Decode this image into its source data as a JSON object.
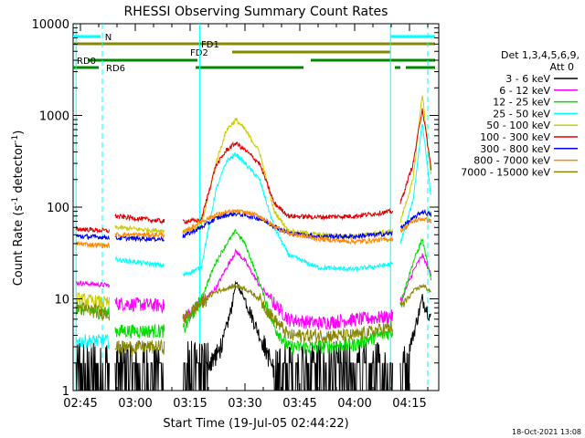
{
  "chart_data": {
    "type": "line",
    "title": "RHESSI Observing Summary Count Rates",
    "xlabel": "Start Time (19-Jul-05 02:44:22)",
    "ylabel_main": "Count Rate (s",
    "ylabel_sup1": "-1",
    "ylabel_mid": " detector",
    "ylabel_sup2": "-1",
    "ylabel_end": ")",
    "yscale": "log",
    "ylim": [
      1,
      10000
    ],
    "xlim_minutes": [
      163,
      263
    ],
    "xticks": [
      {
        "label": "02:45",
        "m": 165
      },
      {
        "label": "03:00",
        "m": 180
      },
      {
        "label": "03:15",
        "m": 195
      },
      {
        "label": "03:30",
        "m": 210
      },
      {
        "label": "03:45",
        "m": 225
      },
      {
        "label": "04:00",
        "m": 240
      },
      {
        "label": "04:15",
        "m": 255
      }
    ],
    "yticks": [
      {
        "label": "1",
        "v": 1
      },
      {
        "label": "10",
        "v": 10
      },
      {
        "label": "100",
        "v": 100
      },
      {
        "label": "1000",
        "v": 1000
      },
      {
        "label": "10000",
        "v": 10000
      }
    ],
    "legend": {
      "header1": "Det 1,3,4,5,6,9,",
      "header2": "Att 0",
      "entries": [
        {
          "label": "3 - 6 keV",
          "color": "#000000"
        },
        {
          "label": "6 - 12 keV",
          "color": "#ff00ff"
        },
        {
          "label": "12 - 25 keV",
          "color": "#00dd00"
        },
        {
          "label": "25 - 50 keV",
          "color": "#00ffff"
        },
        {
          "label": "50 - 100 keV",
          "color": "#cccc00"
        },
        {
          "label": "100 - 300 keV",
          "color": "#dd0000"
        },
        {
          "label": "300 - 800 keV",
          "color": "#0000ee"
        },
        {
          "label": "800 - 7000 keV",
          "color": "#ff8800"
        },
        {
          "label": "7000 - 15000 keV",
          "color": "#888800"
        }
      ]
    },
    "flags": {
      "N_label": "N",
      "FD1_label": "FD1",
      "FD2_label": "FD2",
      "RD0_label": "RD0",
      "RD6_label": "RD6",
      "N_color": "#00ffff",
      "FD_color": "#888800",
      "RD_color": "#008800"
    },
    "data_gaps_minutes": [
      [
        163,
        163.8
      ],
      [
        173,
        174.5
      ],
      [
        188,
        193
      ],
      [
        250.5,
        252.5
      ]
    ],
    "series_segments": [
      [
        163.8,
        173
      ],
      [
        174.5,
        188
      ],
      [
        193,
        250.5
      ],
      [
        252.5,
        261
      ]
    ],
    "flare_peaks_minutes": [
      207.5,
      258.5
    ],
    "series": [
      {
        "name": "3 - 6 keV",
        "color": "#000000",
        "points": [
          [
            163.8,
            1.0
          ],
          [
            173,
            1.0
          ],
          [
            174.5,
            1.1
          ],
          [
            188,
            1.1
          ],
          [
            193,
            1.0
          ],
          [
            198,
            1.5
          ],
          [
            203,
            2.5
          ],
          [
            206,
            7
          ],
          [
            207.5,
            15
          ],
          [
            210,
            10
          ],
          [
            214,
            4
          ],
          [
            218,
            1.5
          ],
          [
            222,
            1.0
          ],
          [
            250.5,
            1.0
          ],
          [
            252.5,
            1.5
          ],
          [
            256,
            4
          ],
          [
            258.5,
            10
          ],
          [
            261,
            6
          ]
        ]
      },
      {
        "name": "6 - 12 keV",
        "color": "#ff00ff",
        "points": [
          [
            163.8,
            15
          ],
          [
            173,
            14
          ],
          [
            174.5,
            9
          ],
          [
            188,
            8.5
          ],
          [
            193,
            6
          ],
          [
            198,
            9
          ],
          [
            202,
            13
          ],
          [
            205,
            22
          ],
          [
            207.5,
            33
          ],
          [
            210,
            26
          ],
          [
            214,
            14
          ],
          [
            218,
            9
          ],
          [
            222,
            6
          ],
          [
            230,
            5.5
          ],
          [
            240,
            6
          ],
          [
            250.5,
            6.5
          ],
          [
            252.5,
            9
          ],
          [
            256,
            20
          ],
          [
            258.5,
            30
          ],
          [
            261,
            18
          ]
        ]
      },
      {
        "name": "12 - 25 keV",
        "color": "#00dd00",
        "points": [
          [
            163.8,
            8
          ],
          [
            173,
            7
          ],
          [
            174.5,
            4.5
          ],
          [
            188,
            4.5
          ],
          [
            193,
            4.5
          ],
          [
            198,
            10
          ],
          [
            202,
            25
          ],
          [
            205,
            40
          ],
          [
            207.5,
            55
          ],
          [
            210,
            40
          ],
          [
            214,
            15
          ],
          [
            218,
            5
          ],
          [
            222,
            3
          ],
          [
            230,
            3
          ],
          [
            240,
            3.2
          ],
          [
            250.5,
            4.5
          ],
          [
            252.5,
            9
          ],
          [
            256,
            25
          ],
          [
            258.5,
            45
          ],
          [
            261,
            15
          ]
        ]
      },
      {
        "name": "25 - 50 keV",
        "color": "#00ffff",
        "points": [
          [
            163.8,
            3.5
          ],
          [
            173,
            3.5
          ],
          [
            174.5,
            27
          ],
          [
            188,
            23
          ],
          [
            193,
            18
          ],
          [
            198,
            22
          ],
          [
            202,
            150
          ],
          [
            205,
            320
          ],
          [
            207.5,
            380
          ],
          [
            210,
            300
          ],
          [
            214,
            200
          ],
          [
            218,
            60
          ],
          [
            222,
            30
          ],
          [
            230,
            22
          ],
          [
            240,
            21
          ],
          [
            250.5,
            24
          ],
          [
            252.5,
            40
          ],
          [
            256,
            120
          ],
          [
            258.5,
            850
          ],
          [
            261,
            120
          ]
        ]
      },
      {
        "name": "50 - 100 keV",
        "color": "#cccc00",
        "points": [
          [
            163.8,
            10
          ],
          [
            173,
            9
          ],
          [
            174.5,
            60
          ],
          [
            188,
            55
          ],
          [
            193,
            55
          ],
          [
            198,
            60
          ],
          [
            202,
            300
          ],
          [
            205,
            700
          ],
          [
            207.5,
            900
          ],
          [
            210,
            700
          ],
          [
            214,
            400
          ],
          [
            218,
            90
          ],
          [
            222,
            55
          ],
          [
            230,
            50
          ],
          [
            240,
            48
          ],
          [
            250.5,
            55
          ],
          [
            252.5,
            70
          ],
          [
            256,
            200
          ],
          [
            258.5,
            1750
          ],
          [
            261,
            200
          ]
        ]
      },
      {
        "name": "100 - 300 keV",
        "color": "#dd0000",
        "points": [
          [
            163.8,
            58
          ],
          [
            173,
            55
          ],
          [
            174.5,
            80
          ],
          [
            188,
            70
          ],
          [
            193,
            70
          ],
          [
            198,
            72
          ],
          [
            202,
            280
          ],
          [
            205,
            420
          ],
          [
            207.5,
            500
          ],
          [
            210,
            420
          ],
          [
            214,
            300
          ],
          [
            218,
            110
          ],
          [
            222,
            80
          ],
          [
            230,
            78
          ],
          [
            240,
            80
          ],
          [
            250.5,
            90
          ],
          [
            252.5,
            110
          ],
          [
            256,
            300
          ],
          [
            258.5,
            1200
          ],
          [
            261,
            250
          ]
        ]
      },
      {
        "name": "300 - 800 keV",
        "color": "#0000ee",
        "points": [
          [
            163.8,
            48
          ],
          [
            173,
            47
          ],
          [
            174.5,
            46
          ],
          [
            188,
            45
          ],
          [
            193,
            48
          ],
          [
            198,
            60
          ],
          [
            202,
            75
          ],
          [
            205,
            82
          ],
          [
            207.5,
            85
          ],
          [
            210,
            82
          ],
          [
            214,
            75
          ],
          [
            218,
            62
          ],
          [
            222,
            52
          ],
          [
            230,
            48
          ],
          [
            240,
            48
          ],
          [
            250.5,
            52
          ],
          [
            252.5,
            60
          ],
          [
            256,
            75
          ],
          [
            258.5,
            90
          ],
          [
            261,
            82
          ]
        ]
      },
      {
        "name": "800 - 7000 keV",
        "color": "#ff8800",
        "points": [
          [
            163.8,
            40
          ],
          [
            173,
            38
          ],
          [
            174.5,
            50
          ],
          [
            188,
            50
          ],
          [
            193,
            52
          ],
          [
            198,
            70
          ],
          [
            202,
            82
          ],
          [
            205,
            88
          ],
          [
            207.5,
            90
          ],
          [
            210,
            88
          ],
          [
            214,
            80
          ],
          [
            218,
            62
          ],
          [
            222,
            52
          ],
          [
            230,
            45
          ],
          [
            240,
            42
          ],
          [
            250.5,
            45
          ],
          [
            252.5,
            55
          ],
          [
            256,
            70
          ],
          [
            258.5,
            75
          ],
          [
            261,
            70
          ]
        ]
      },
      {
        "name": "7000 - 15000 keV",
        "color": "#888800",
        "points": [
          [
            163.8,
            8
          ],
          [
            173,
            7
          ],
          [
            174.5,
            3
          ],
          [
            188,
            3
          ],
          [
            193,
            6
          ],
          [
            198,
            9
          ],
          [
            202,
            12
          ],
          [
            205,
            13
          ],
          [
            207.5,
            14
          ],
          [
            210,
            13
          ],
          [
            214,
            10
          ],
          [
            218,
            6
          ],
          [
            222,
            4
          ],
          [
            230,
            4
          ],
          [
            240,
            4
          ],
          [
            250.5,
            5
          ],
          [
            252.5,
            8
          ],
          [
            256,
            12
          ],
          [
            258.5,
            14
          ],
          [
            261,
            12
          ]
        ]
      }
    ]
  },
  "footer": {
    "timestamp": "18-Oct-2021 13:08"
  }
}
